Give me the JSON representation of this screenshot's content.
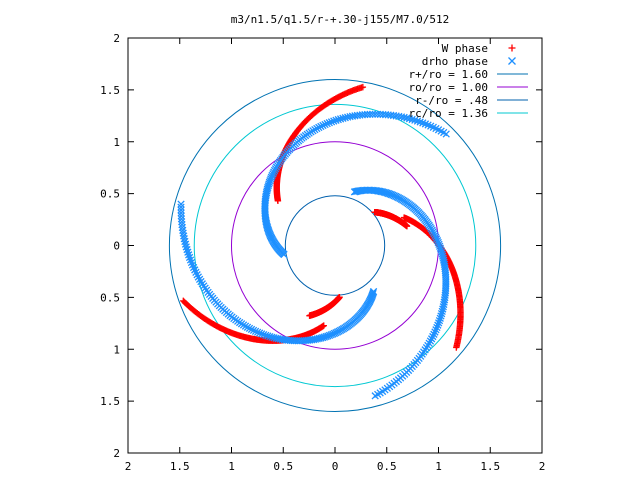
{
  "chart_data": {
    "type": "scatter",
    "title": "m3/n1.5/q1.5/r-+.30-j155/M7.0/512",
    "xlim": [
      -2,
      2
    ],
    "ylim": [
      -2,
      2
    ],
    "x_tick_labels": [
      "2",
      "1.5",
      "1",
      "0.5",
      "0",
      "0.5",
      "1",
      "1.5",
      "2"
    ],
    "y_tick_labels": [
      "2",
      "1.5",
      "1",
      "0.5",
      "0",
      "0.5",
      "1",
      "1.5",
      "2"
    ],
    "x_ticks": [
      -2,
      -1.5,
      -1,
      -0.5,
      0,
      0.5,
      1,
      1.5,
      2
    ],
    "y_ticks": [
      2,
      1.5,
      1,
      0.5,
      0,
      -0.5,
      -1,
      -1.5,
      -2
    ],
    "legend_position": "top-right",
    "circles": [
      {
        "name": "r+/ro = 1.60",
        "r": 1.6,
        "color": "#0072b2"
      },
      {
        "name": "ro/ro = 1.00",
        "r": 1.0,
        "color": "#9400d3"
      },
      {
        "name": "r-/ro = .48",
        "r": 0.48,
        "color": "#0060ad"
      },
      {
        "name": "rc/ro = 1.36",
        "r": 1.36,
        "color": "#00c8d2"
      }
    ],
    "series": [
      {
        "name": "W phase",
        "marker": "+",
        "color": "#ff0000",
        "arcs": [
          {
            "r0": 1.56,
            "r1": 0.78,
            "t0": 200,
            "t1": 262
          },
          {
            "r0": 1.53,
            "r1": 0.72,
            "t0": 320,
            "t1": 382
          },
          {
            "r0": 1.55,
            "r1": 0.7,
            "t0": 80,
            "t1": 142
          },
          {
            "r0": 0.72,
            "r1": 0.5,
            "t0": 250,
            "t1": 275
          },
          {
            "r0": 0.72,
            "r1": 0.5,
            "t0": 15,
            "t1": 40
          }
        ]
      },
      {
        "name": "drho phase",
        "marker": "x",
        "color": "#1e90ff",
        "arcs": [
          {
            "r0": 1.54,
            "r1": 0.58,
            "t0": 165,
            "t1": 310
          },
          {
            "r0": 1.5,
            "r1": 0.55,
            "t0": 285,
            "t1": 430
          },
          {
            "r0": 1.52,
            "r1": 0.5,
            "t0": 45,
            "t1": 190
          }
        ]
      }
    ]
  }
}
